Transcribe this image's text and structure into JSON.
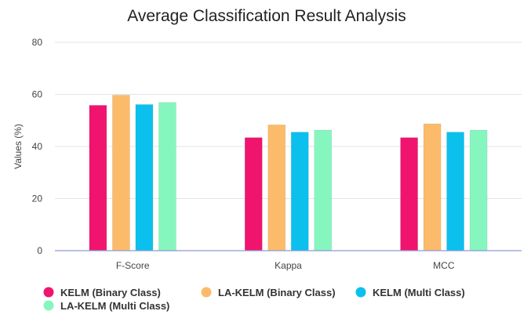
{
  "chart_data": {
    "type": "bar",
    "title": "Average Classification Result Analysis",
    "xlabel": "",
    "ylabel": "Values (%)",
    "ylim": [
      0,
      80
    ],
    "yticks": [
      0,
      20,
      40,
      60,
      80
    ],
    "grid": true,
    "legend_position": "bottom",
    "categories": [
      "F-Score",
      "Kappa",
      "MCC"
    ],
    "series": [
      {
        "name": "KELM (Binary Class)",
        "color": "#f0146e",
        "values": [
          55.8,
          43.4,
          43.4
        ]
      },
      {
        "name": "LA-KELM (Binary Class)",
        "color": "#fcbb6a",
        "values": [
          59.7,
          48.3,
          48.7
        ]
      },
      {
        "name": "KELM (Multi Class)",
        "color": "#0cc0ee",
        "values": [
          56.1,
          45.5,
          45.5
        ]
      },
      {
        "name": "LA-KELM (Multi Class)",
        "color": "#86f6bf",
        "values": [
          56.9,
          46.3,
          46.3
        ]
      }
    ]
  }
}
